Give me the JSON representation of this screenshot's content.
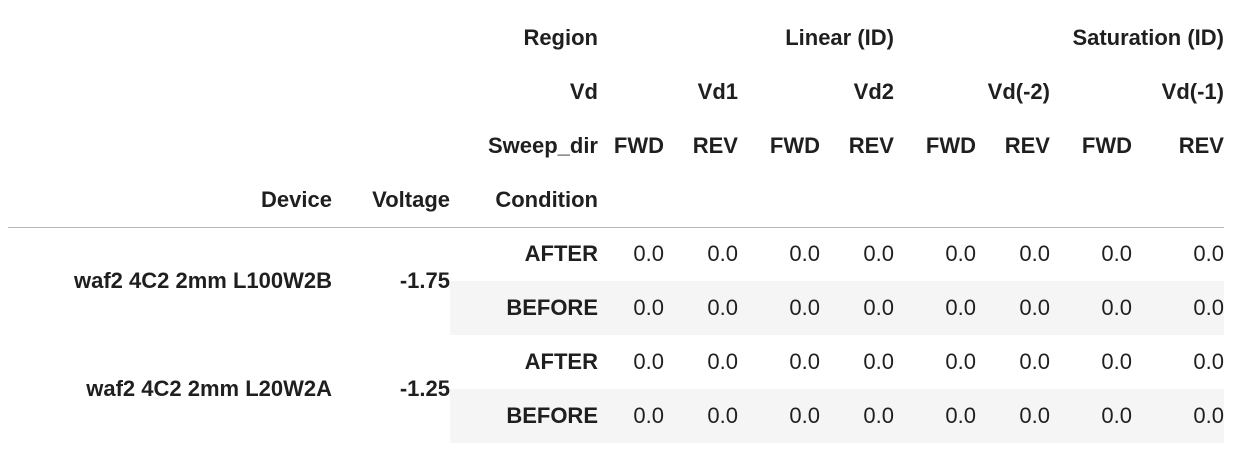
{
  "header": {
    "region": {
      "label": "Region",
      "groups": [
        "Linear (ID)",
        "Saturation (ID)"
      ]
    },
    "vd": {
      "label": "Vd",
      "groups": [
        "Vd1",
        "Vd2",
        "Vd(-2)",
        "Vd(-1)"
      ]
    },
    "sweep_dir": {
      "label": "Sweep_dir",
      "values": [
        "FWD",
        "REV",
        "FWD",
        "REV",
        "FWD",
        "REV",
        "FWD",
        "REV"
      ]
    },
    "index_names": [
      "Device",
      "Voltage",
      "Condition"
    ]
  },
  "rows": [
    {
      "device": "waf2 4C2 2mm L100W2B",
      "voltage": "-1.75",
      "condition": "AFTER",
      "values": [
        "0.0",
        "0.0",
        "0.0",
        "0.0",
        "0.0",
        "0.0",
        "0.0",
        "0.0"
      ]
    },
    {
      "device": "",
      "voltage": "",
      "condition": "BEFORE",
      "values": [
        "0.0",
        "0.0",
        "0.0",
        "0.0",
        "0.0",
        "0.0",
        "0.0",
        "0.0"
      ]
    },
    {
      "device": "waf2 4C2 2mm L20W2A",
      "voltage": "-1.25",
      "condition": "AFTER",
      "values": [
        "0.0",
        "0.0",
        "0.0",
        "0.0",
        "0.0",
        "0.0",
        "0.0",
        "0.0"
      ]
    },
    {
      "device": "",
      "voltage": "",
      "condition": "BEFORE",
      "values": [
        "0.0",
        "0.0",
        "0.0",
        "0.0",
        "0.0",
        "0.0",
        "0.0",
        "0.0"
      ]
    }
  ]
}
